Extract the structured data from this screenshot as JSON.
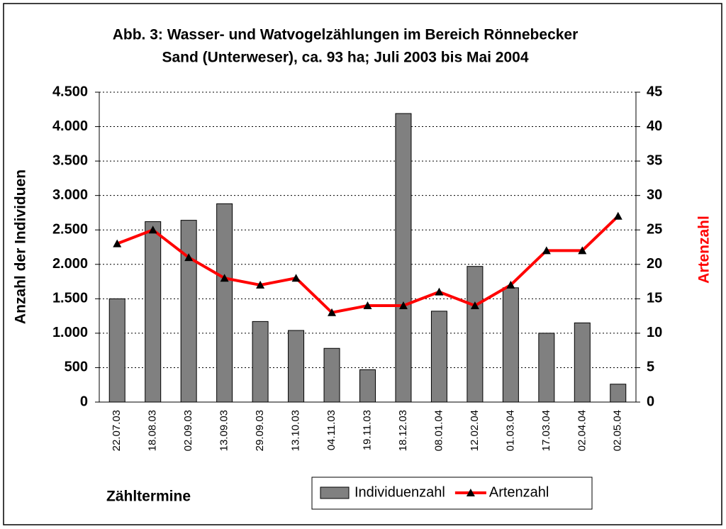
{
  "chart_data": {
    "type": "bar_line",
    "title": [
      "Abb. 3: Wasser- und Watvogelzählungen im Bereich Rönnebecker",
      "Sand (Unterweser), ca. 93 ha;   Juli 2003 bis Mai 2004"
    ],
    "x_label": "Zähltermine",
    "y_label": "Anzahl der Individuen",
    "y2_label": "Artenzahl",
    "categories": [
      "22.07.03",
      "18.08.03",
      "02.09.03",
      "13.09.03",
      "29.09.03",
      "13.10.03",
      "04.11.03",
      "19.11.03",
      "18.12.03",
      "08.01.04",
      "12.02.04",
      "01.03.04",
      "17.03.04",
      "02.04.04",
      "02.05.04"
    ],
    "series": [
      {
        "name": "Individuenzahl",
        "type": "bar",
        "color": "#808080",
        "values": [
          1500,
          2620,
          2640,
          2880,
          1170,
          1040,
          780,
          470,
          4190,
          1320,
          1970,
          1660,
          1000,
          1150,
          260
        ]
      },
      {
        "name": "Artenzahl",
        "type": "line",
        "axis": "y2",
        "color": "#ff0000",
        "values": [
          23,
          25,
          21,
          18,
          17,
          18,
          13,
          14,
          14,
          16,
          14,
          17,
          22,
          22,
          27
        ]
      }
    ],
    "ylim": [
      0,
      4500
    ],
    "yticks": [
      0,
      500,
      {
        "value": 1000,
        "label": "1.000"
      },
      {
        "value": 1500,
        "label": "1.500"
      },
      {
        "value": 2000,
        "label": "2.000"
      },
      {
        "value": 2500,
        "label": "2.500"
      },
      {
        "value": 3000,
        "label": "3.000"
      },
      {
        "value": 3500,
        "label": "3.500"
      },
      {
        "value": 4000,
        "label": "4.000"
      },
      {
        "value": 4500,
        "label": "4.500"
      }
    ],
    "y2lim": [
      0,
      45
    ],
    "y2ticks": [
      0,
      5,
      10,
      15,
      20,
      25,
      30,
      35,
      40,
      45
    ],
    "grid": true,
    "legend": "bottom-right"
  }
}
